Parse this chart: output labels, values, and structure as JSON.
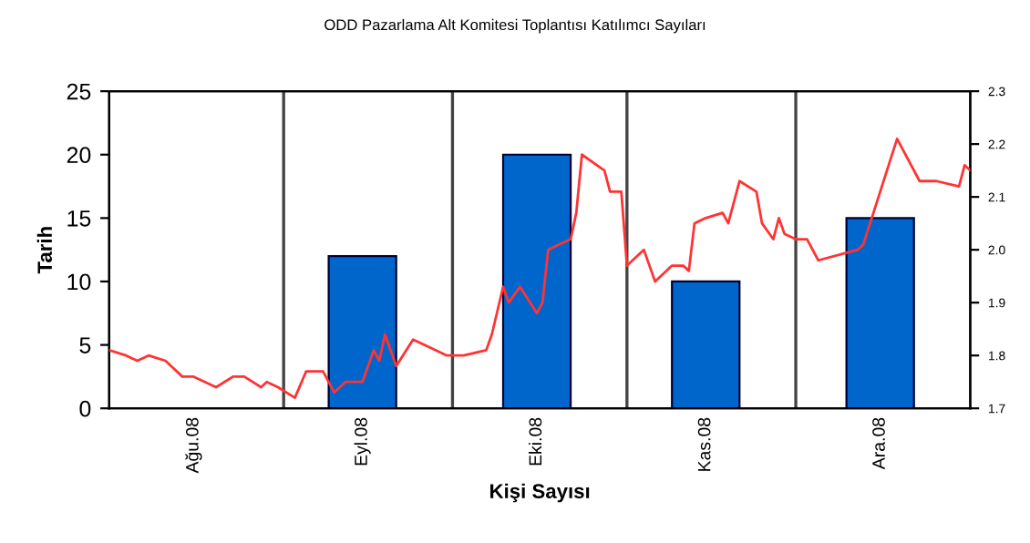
{
  "chart_data": {
    "type": "bar",
    "title": "ODD Pazarlama Alt Komitesi Toplantısı Katılımcı Sayıları",
    "xlabel": "Kişi Sayısı",
    "ylabel": "Tarih",
    "x": [
      "2008-08-16",
      "2008-09-15",
      "2008-10-16",
      "2008-11-15",
      "2008-12-16"
    ],
    "series": [
      {
        "color": "#0066cc",
        "values": [
          0,
          12,
          20,
          10,
          15
        ]
      },
      {
        "type": "line",
        "axis": "y2",
        "color": "#ff3333",
        "x": [
          "2008-08-01",
          "2008-08-04",
          "2008-08-06",
          "2008-08-08",
          "2008-08-11",
          "2008-08-12",
          "2008-08-14",
          "2008-08-16",
          "2008-08-20",
          "2008-08-23",
          "2008-08-25",
          "2008-08-28",
          "2008-08-29",
          "2008-08-31",
          "2008-09-03",
          "2008-09-05",
          "2008-09-08",
          "2008-09-10",
          "2008-09-12",
          "2008-09-15",
          "2008-09-17",
          "2008-09-18",
          "2008-09-19",
          "2008-09-21",
          "2008-09-24",
          "2008-09-26",
          "2008-09-30",
          "2008-10-03",
          "2008-10-07",
          "2008-10-08",
          "2008-10-10",
          "2008-10-11",
          "2008-10-13",
          "2008-10-16",
          "2008-10-17",
          "2008-10-18",
          "2008-10-20",
          "2008-10-22",
          "2008-10-23",
          "2008-10-24",
          "2008-10-28",
          "2008-10-29",
          "2008-10-31",
          "2008-11-01",
          "2008-11-04",
          "2008-11-06",
          "2008-11-09",
          "2008-11-11",
          "2008-11-12",
          "2008-11-13",
          "2008-11-15",
          "2008-11-18",
          "2008-11-19",
          "2008-11-21",
          "2008-11-24",
          "2008-11-25",
          "2008-11-27",
          "2008-11-28",
          "2008-11-29",
          "2008-12-01",
          "2008-12-03",
          "2008-12-05",
          "2008-12-12",
          "2008-12-13",
          "2008-12-16",
          "2008-12-19",
          "2008-12-23",
          "2008-12-26",
          "2008-12-30",
          "2008-12-31",
          "2009-01-01"
        ],
        "values": [
          1.81,
          1.8,
          1.79,
          1.8,
          1.79,
          1.78,
          1.76,
          1.76,
          1.74,
          1.76,
          1.76,
          1.74,
          1.75,
          1.74,
          1.72,
          1.77,
          1.77,
          1.73,
          1.75,
          1.75,
          1.81,
          1.79,
          1.84,
          1.78,
          1.83,
          1.82,
          1.8,
          1.8,
          1.81,
          1.84,
          1.93,
          1.9,
          1.93,
          1.88,
          1.9,
          2.0,
          2.01,
          2.02,
          2.07,
          2.18,
          2.15,
          2.11,
          2.11,
          1.97,
          2.0,
          1.94,
          1.97,
          1.97,
          1.96,
          2.05,
          2.06,
          2.07,
          2.05,
          2.13,
          2.11,
          2.05,
          2.02,
          2.06,
          2.03,
          2.02,
          2.02,
          1.98,
          2.0,
          2.01,
          2.11,
          2.21,
          2.13,
          2.13,
          2.12,
          2.16,
          2.15
        ]
      }
    ],
    "xlim": [
      "2008-08-01",
      "2009-01-01"
    ],
    "xticks": [
      {
        "value": "2008-08-16",
        "label": "Ağu.08"
      },
      {
        "value": "2008-09-15",
        "label": "Eyl.08"
      },
      {
        "value": "2008-10-16",
        "label": "Eki.08"
      },
      {
        "value": "2008-11-15",
        "label": "Kas.08"
      },
      {
        "value": "2008-12-16",
        "label": "Ara.08"
      }
    ],
    "ylim": [
      0,
      25
    ],
    "yticks": [
      0,
      5,
      10,
      15,
      20,
      25
    ],
    "y2lim": [
      1.7,
      2.3
    ],
    "y2ticks": [
      1.7,
      1.8,
      1.9,
      {
        "value": 2.0,
        "label": "2.0"
      },
      2.1,
      2.2,
      2.3
    ],
    "ref_lines": [
      {
        "axis": "x",
        "value": "2008-09-01",
        "color": "#444444"
      },
      {
        "axis": "x",
        "value": "2008-10-01",
        "color": "#444444"
      },
      {
        "axis": "x",
        "value": "2008-11-01",
        "color": "#444444"
      },
      {
        "axis": "x",
        "value": "2008-12-01",
        "color": "#444444"
      }
    ],
    "legend": false
  }
}
